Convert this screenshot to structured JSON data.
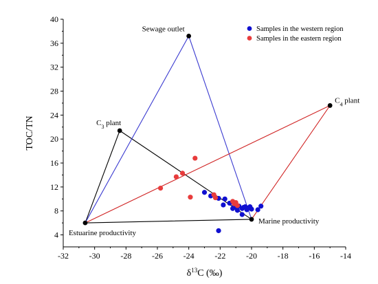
{
  "chart_data": {
    "type": "scatter",
    "xlabel_parts": [
      "δ",
      "13",
      "C (‰)"
    ],
    "ylabel": "TOC/TN",
    "xlim": [
      -32,
      -14
    ],
    "ylim": [
      2,
      40
    ],
    "xticks": [
      -32,
      -30,
      -28,
      -26,
      -24,
      -22,
      -20,
      -18,
      -16,
      -14
    ],
    "yticks": [
      4,
      8,
      12,
      16,
      20,
      24,
      28,
      32,
      36,
      40
    ],
    "legend_position": "top-right",
    "legend": [
      {
        "label": "Samples in the western region",
        "color": "#1010d0"
      },
      {
        "label": "Samples in the eastern region",
        "color": "#e83c3c"
      }
    ],
    "end_members": [
      {
        "name": "Sewage outlet",
        "x": -24.0,
        "y": 37.2
      },
      {
        "name": "C3 plant",
        "label_parts": [
          "C",
          "3",
          " plant"
        ],
        "x": -28.4,
        "y": 21.4
      },
      {
        "name": "C4 plant",
        "label_parts": [
          "C",
          "4",
          " plant"
        ],
        "x": -15.0,
        "y": 25.6
      },
      {
        "name": "Estuarine productivity",
        "x": -30.6,
        "y": 6.0
      },
      {
        "name": "Marine productivity",
        "x": -20.0,
        "y": 6.6
      }
    ],
    "mixing_lines": [
      {
        "color": "#000000",
        "points": [
          "Estuarine productivity",
          "C3 plant",
          "Marine productivity",
          "Estuarine productivity"
        ]
      },
      {
        "color": "#3a3ad0",
        "points": [
          "Estuarine productivity",
          "Sewage outlet",
          "Marine productivity"
        ]
      },
      {
        "color": "#d02424",
        "points": [
          "Estuarine productivity",
          "C4 plant",
          "Marine productivity"
        ]
      }
    ],
    "series": [
      {
        "name": "Samples in the western region",
        "color": "#1010d0",
        "points": [
          [
            -23.0,
            11.1
          ],
          [
            -22.6,
            10.5
          ],
          [
            -22.1,
            10.1
          ],
          [
            -21.8,
            9.0
          ],
          [
            -21.7,
            10.0
          ],
          [
            -21.4,
            9.3
          ],
          [
            -21.1,
            8.9
          ],
          [
            -21.0,
            8.6
          ],
          [
            -20.8,
            8.8
          ],
          [
            -20.6,
            8.4
          ],
          [
            -20.5,
            8.6
          ],
          [
            -20.4,
            8.7
          ],
          [
            -20.3,
            8.2
          ],
          [
            -20.2,
            8.5
          ],
          [
            -20.1,
            8.7
          ],
          [
            -20.0,
            8.3
          ],
          [
            -20.6,
            7.4
          ],
          [
            -19.6,
            8.2
          ],
          [
            -19.4,
            8.8
          ],
          [
            -22.1,
            4.7
          ],
          [
            -20.9,
            8.1
          ],
          [
            -21.2,
            8.4
          ]
        ]
      },
      {
        "name": "Samples in the eastern region",
        "color": "#e83c3c",
        "points": [
          [
            -25.8,
            11.8
          ],
          [
            -24.8,
            13.7
          ],
          [
            -24.4,
            14.3
          ],
          [
            -23.9,
            10.3
          ],
          [
            -23.6,
            16.8
          ],
          [
            -22.4,
            10.7
          ],
          [
            -22.3,
            10.2
          ],
          [
            -21.2,
            9.6
          ],
          [
            -21.1,
            9.2
          ],
          [
            -20.9,
            8.9
          ],
          [
            -21.0,
            9.4
          ]
        ]
      }
    ]
  }
}
